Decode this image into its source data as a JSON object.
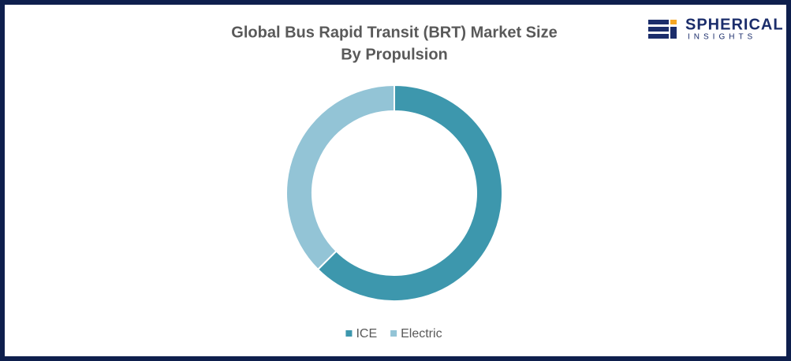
{
  "chart_data": {
    "type": "pie",
    "title": "Global Bus Rapid Transit (BRT) Market Size",
    "subtitle": "By Propulsion",
    "categories": [
      "ICE",
      "Electric"
    ],
    "values": [
      62.5,
      37.5
    ],
    "colors": [
      "#3d97ad",
      "#93c4d6"
    ],
    "legend": "bottom"
  },
  "logo": {
    "name": "SPHERICAL",
    "tagline": "INSIGHTS"
  }
}
